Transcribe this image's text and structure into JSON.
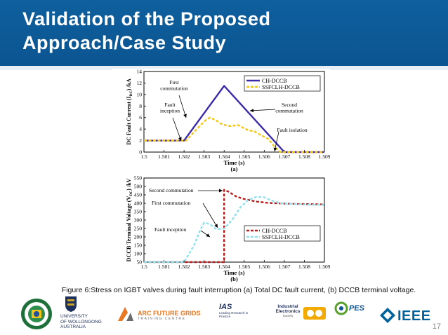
{
  "slide": {
    "title_line1": "Validation of the Proposed",
    "title_line2": "Approach/Case Study",
    "caption": "Figure 6:Stress on IGBT valves during fault interruption (a) Total DC fault current, (b) DCCB terminal voltage.",
    "page_number": "17"
  },
  "colors": {
    "header_blue": "#0f5f9e",
    "ch_dccb_a": "#3a2aa8",
    "ssfclh_a": "#f5c518",
    "ch_dccb_b": "#b51d1d",
    "ssfclh_b": "#8fe0ec"
  },
  "chart_data": [
    {
      "type": "line",
      "panel_label": "(a)",
      "xlabel": "Time (s)",
      "ylabel": "DC Fault Current (I_DC) /kA",
      "ylabel_main": "DC Fault Current (I",
      "ylabel_sub": "DC",
      "ylabel_tail": ") /kA",
      "xlim": [
        1.5,
        1.509
      ],
      "ylim": [
        0,
        14
      ],
      "xticks": [
        "1.5",
        "1.501",
        "1.502",
        "1.503",
        "1.504",
        "1.505",
        "1.506",
        "1.507",
        "1.508",
        "1.509"
      ],
      "yticks": [
        "0",
        "2",
        "4",
        "6",
        "8",
        "10",
        "12",
        "14"
      ],
      "legend": [
        "CH-DCCB",
        "SSFCLH-DCCB"
      ],
      "series": [
        {
          "name": "CH-DCCB",
          "style": "solid",
          "x": [
            1.5,
            1.502,
            1.504,
            1.507,
            1.509
          ],
          "y": [
            2,
            2,
            11.5,
            0,
            0
          ]
        },
        {
          "name": "SSFCLH-DCCB",
          "style": "dashed",
          "x": [
            1.5,
            1.5021,
            1.5024,
            1.5028,
            1.5031,
            1.5033,
            1.5036,
            1.5039,
            1.5043,
            1.5047,
            1.5049,
            1.5052,
            1.5055,
            1.5058,
            1.5062,
            1.5065,
            1.5068,
            1.509
          ],
          "y": [
            2,
            2,
            3.1,
            4.6,
            5.6,
            6.0,
            5.5,
            4.8,
            4.5,
            4.7,
            4.3,
            3.8,
            3.6,
            3.0,
            2.3,
            1.0,
            0,
            0
          ]
        }
      ],
      "annotations": [
        "First commutation",
        "Fault inception",
        "Second commutation",
        "Fault isolation"
      ]
    },
    {
      "type": "line",
      "panel_label": "(b)",
      "xlabel": "Time (s)",
      "ylabel": "DCCB Terminal Voltage (V_DC) /kV",
      "ylabel_main": "DCCB Terminal Voltage (V",
      "ylabel_sub": "DC",
      "ylabel_tail": ") /kV",
      "xlim": [
        1.5,
        1.509
      ],
      "ylim": [
        50,
        550
      ],
      "xticks": [
        "1.5",
        "1.501",
        "1.502",
        "1.503",
        "1.504",
        "1.505",
        "1.506",
        "1.507",
        "1.508",
        "1.509"
      ],
      "yticks": [
        "50",
        "100",
        "150",
        "200",
        "250",
        "300",
        "350",
        "400",
        "450",
        "500",
        "550"
      ],
      "legend": [
        "CH-DCCB",
        "SSFCLH-DCCB"
      ],
      "series": [
        {
          "name": "CH-DCCB",
          "style": "dashed",
          "x": [
            1.5,
            1.504,
            1.504,
            1.5042,
            1.5046,
            1.505,
            1.5056,
            1.5062,
            1.507,
            1.508,
            1.509
          ],
          "y": [
            50,
            50,
            480,
            470,
            440,
            425,
            410,
            402,
            398,
            395,
            393
          ]
        },
        {
          "name": "SSFCLH-DCCB",
          "style": "dashed",
          "x": [
            1.5,
            1.502,
            1.5025,
            1.5028,
            1.503,
            1.5033,
            1.5036,
            1.504,
            1.5044,
            1.5048,
            1.5052,
            1.5056,
            1.506,
            1.5064,
            1.5068,
            1.5075,
            1.508,
            1.509
          ],
          "y": [
            50,
            50,
            150,
            240,
            285,
            275,
            245,
            250,
            300,
            375,
            420,
            438,
            435,
            415,
            400,
            395,
            392,
            390
          ]
        }
      ],
      "annotations": [
        "Second commutation",
        "First commutation",
        "Fault inception"
      ]
    }
  ],
  "logos": {
    "uow": [
      "UNIVERSITY",
      "OF WOLLONGONG",
      "AUSTRALIA"
    ],
    "arc": [
      "ARC FUTURE GRIDS",
      "TRAINING CENTRE"
    ],
    "ias": [
      "IAS",
      "Leading Research in Practice"
    ],
    "ie": [
      "Industrial",
      "Electronics",
      "Society"
    ],
    "ieee": "IEEE",
    "pes": "PES"
  }
}
